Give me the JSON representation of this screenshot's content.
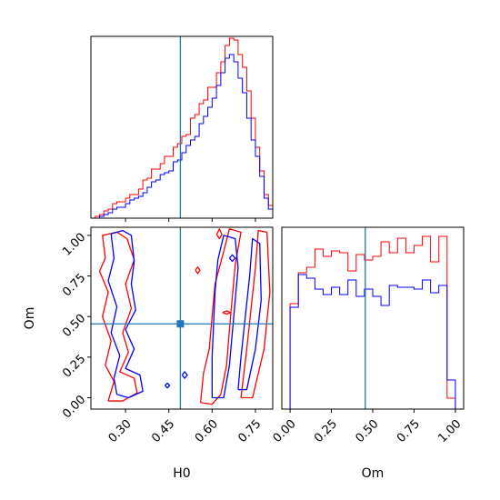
{
  "colors": {
    "series_a": "#ff0000",
    "series_b": "#0000ff",
    "truth": "#1f77b4"
  },
  "chart_data": {
    "type": "corner",
    "parameters": [
      "H0",
      "Om"
    ],
    "truths": {
      "H0": 0.49,
      "Om": 0.455
    },
    "panels": [
      {
        "id": "hist-H0",
        "type": "histogram",
        "parameter": "H0",
        "x": [
          0.18,
          0.195,
          0.21,
          0.225,
          0.24,
          0.255,
          0.27,
          0.285,
          0.3,
          0.315,
          0.33,
          0.345,
          0.36,
          0.375,
          0.39,
          0.405,
          0.42,
          0.435,
          0.45,
          0.465,
          0.48,
          0.495,
          0.51,
          0.525,
          0.54,
          0.555,
          0.57,
          0.585,
          0.6,
          0.615,
          0.63,
          0.645,
          0.66,
          0.675,
          0.69,
          0.705,
          0.72,
          0.735,
          0.75,
          0.765,
          0.78,
          0.795
        ],
        "xlim": [
          0.18,
          0.81
        ],
        "ylim": [
          0,
          1.0
        ],
        "grid": false,
        "series": [
          {
            "color": "red",
            "values": [
              0.0,
              0.01,
              0.02,
              0.04,
              0.05,
              0.08,
              0.09,
              0.09,
              0.11,
              0.13,
              0.13,
              0.16,
              0.21,
              0.22,
              0.27,
              0.27,
              0.3,
              0.34,
              0.34,
              0.39,
              0.41,
              0.45,
              0.46,
              0.55,
              0.57,
              0.63,
              0.65,
              0.72,
              0.72,
              0.8,
              0.86,
              0.95,
              0.99,
              0.98,
              0.9,
              0.83,
              0.7,
              0.55,
              0.39,
              0.26,
              0.13,
              0.07
            ]
          },
          {
            "color": "blue",
            "values": [
              0.0,
              0.0,
              0.01,
              0.02,
              0.03,
              0.05,
              0.06,
              0.06,
              0.08,
              0.1,
              0.11,
              0.12,
              0.14,
              0.17,
              0.2,
              0.21,
              0.24,
              0.25,
              0.26,
              0.31,
              0.32,
              0.36,
              0.4,
              0.43,
              0.45,
              0.52,
              0.56,
              0.61,
              0.66,
              0.73,
              0.8,
              0.88,
              0.9,
              0.86,
              0.77,
              0.69,
              0.55,
              0.43,
              0.34,
              0.23,
              0.11,
              0.05
            ]
          }
        ]
      },
      {
        "id": "contour-H0-Om",
        "type": "contour",
        "xparam": "H0",
        "yparam": "Om",
        "xlim": [
          0.18,
          0.81
        ],
        "ylim": [
          -0.07,
          1.05
        ],
        "xticks": [
          0.3,
          0.45,
          0.6,
          0.75
        ],
        "xtick_labels": [
          "0.30",
          "0.45",
          "0.60",
          "0.75"
        ],
        "yticks": [
          0.0,
          0.25,
          0.5,
          0.75,
          1.0
        ],
        "ytick_labels": [
          "0.00",
          "0.25",
          "0.50",
          "0.75",
          "1.00"
        ],
        "xlabel": "H0",
        "ylabel": "Om",
        "grid": false,
        "contours": [
          {
            "color": "red",
            "points": [
              [
                0.24,
                -0.02
              ],
              [
                0.29,
                -0.02
              ],
              [
                0.34,
                0.03
              ],
              [
                0.33,
                0.12
              ],
              [
                0.28,
                0.16
              ],
              [
                0.31,
                0.28
              ],
              [
                0.29,
                0.4
              ],
              [
                0.32,
                0.55
              ],
              [
                0.3,
                0.7
              ],
              [
                0.33,
                0.85
              ],
              [
                0.305,
                0.98
              ],
              [
                0.27,
                1.02
              ],
              [
                0.22,
                1.0
              ],
              [
                0.23,
                0.86
              ],
              [
                0.21,
                0.78
              ],
              [
                0.24,
                0.65
              ],
              [
                0.22,
                0.5
              ],
              [
                0.25,
                0.35
              ],
              [
                0.23,
                0.2
              ],
              [
                0.26,
                0.1
              ],
              [
                0.24,
                -0.02
              ]
            ]
          },
          {
            "color": "red",
            "points": [
              [
                0.56,
                -0.03
              ],
              [
                0.6,
                -0.04
              ],
              [
                0.63,
                0.02
              ],
              [
                0.65,
                0.2
              ],
              [
                0.66,
                0.42
              ],
              [
                0.67,
                0.62
              ],
              [
                0.68,
                0.82
              ],
              [
                0.7,
                1.02
              ],
              [
                0.66,
                1.04
              ],
              [
                0.64,
                0.9
              ],
              [
                0.61,
                0.7
              ],
              [
                0.6,
                0.5
              ],
              [
                0.59,
                0.3
              ],
              [
                0.57,
                0.15
              ],
              [
                0.56,
                -0.03
              ]
            ]
          },
          {
            "color": "red",
            "points": [
              [
                0.7,
                0.0
              ],
              [
                0.74,
                0.0
              ],
              [
                0.78,
                0.3
              ],
              [
                0.8,
                0.65
              ],
              [
                0.79,
                1.02
              ],
              [
                0.76,
                1.03
              ],
              [
                0.75,
                0.8
              ],
              [
                0.735,
                0.55
              ],
              [
                0.72,
                0.3
              ],
              [
                0.7,
                0.0
              ]
            ]
          },
          {
            "color": "red",
            "points": [
              [
                0.616,
                1.005
              ],
              [
                0.625,
                1.04
              ],
              [
                0.634,
                1.005
              ],
              [
                0.625,
                0.98
              ],
              [
                0.616,
                1.005
              ]
            ]
          },
          {
            "color": "red",
            "points": [
              [
                0.636,
                0.525
              ],
              [
                0.65,
                0.535
              ],
              [
                0.664,
                0.525
              ],
              [
                0.65,
                0.515
              ],
              [
                0.636,
                0.525
              ]
            ]
          },
          {
            "color": "red",
            "points": [
              [
                0.542,
                0.785
              ],
              [
                0.55,
                0.805
              ],
              [
                0.558,
                0.785
              ],
              [
                0.55,
                0.765
              ],
              [
                0.542,
                0.785
              ]
            ]
          },
          {
            "color": "blue",
            "points": [
              [
                0.27,
                0.02
              ],
              [
                0.31,
                0.0
              ],
              [
                0.36,
                0.04
              ],
              [
                0.35,
                0.14
              ],
              [
                0.3,
                0.18
              ],
              [
                0.33,
                0.3
              ],
              [
                0.3,
                0.42
              ],
              [
                0.335,
                0.54
              ],
              [
                0.32,
                0.7
              ],
              [
                0.33,
                0.84
              ],
              [
                0.32,
                1.0
              ],
              [
                0.29,
                1.03
              ],
              [
                0.25,
                1.01
              ],
              [
                0.26,
                0.86
              ],
              [
                0.24,
                0.72
              ],
              [
                0.27,
                0.56
              ],
              [
                0.25,
                0.4
              ],
              [
                0.28,
                0.26
              ],
              [
                0.26,
                0.12
              ],
              [
                0.27,
                0.02
              ]
            ]
          },
          {
            "color": "blue",
            "points": [
              [
                0.6,
                0.0
              ],
              [
                0.64,
                0.0
              ],
              [
                0.66,
                0.2
              ],
              [
                0.67,
                0.4
              ],
              [
                0.68,
                0.6
              ],
              [
                0.69,
                0.8
              ],
              [
                0.68,
                0.98
              ],
              [
                0.64,
                1.0
              ],
              [
                0.62,
                0.85
              ],
              [
                0.61,
                0.65
              ],
              [
                0.605,
                0.45
              ],
              [
                0.6,
                0.25
              ],
              [
                0.6,
                0.0
              ]
            ]
          },
          {
            "color": "blue",
            "points": [
              [
                0.69,
                0.05
              ],
              [
                0.72,
                0.05
              ],
              [
                0.75,
                0.3
              ],
              [
                0.77,
                0.6
              ],
              [
                0.765,
                0.95
              ],
              [
                0.74,
                0.98
              ],
              [
                0.73,
                0.75
              ],
              [
                0.715,
                0.5
              ],
              [
                0.7,
                0.25
              ],
              [
                0.69,
                0.05
              ]
            ]
          },
          {
            "color": "blue",
            "points": [
              [
                0.496,
                0.14
              ],
              [
                0.505,
                0.16
              ],
              [
                0.514,
                0.14
              ],
              [
                0.505,
                0.12
              ],
              [
                0.496,
                0.14
              ]
            ]
          },
          {
            "color": "blue",
            "points": [
              [
                0.437,
                0.075
              ],
              [
                0.445,
                0.09
              ],
              [
                0.453,
                0.075
              ],
              [
                0.445,
                0.06
              ],
              [
                0.437,
                0.075
              ]
            ]
          },
          {
            "color": "blue",
            "points": [
              [
                0.66,
                0.86
              ],
              [
                0.67,
                0.88
              ],
              [
                0.68,
                0.86
              ],
              [
                0.67,
                0.84
              ],
              [
                0.66,
                0.86
              ]
            ]
          }
        ]
      },
      {
        "id": "hist-Om",
        "type": "histogram",
        "parameter": "Om",
        "x": [
          0.0,
          0.05,
          0.1,
          0.15,
          0.2,
          0.25,
          0.3,
          0.35,
          0.4,
          0.45,
          0.5,
          0.55,
          0.6,
          0.65,
          0.7,
          0.75,
          0.8,
          0.85,
          0.9,
          0.95
        ],
        "xlim": [
          -0.05,
          1.05
        ],
        "ylim": [
          0,
          1.0
        ],
        "xticks": [
          0.0,
          0.25,
          0.5,
          0.75,
          1.0
        ],
        "xtick_labels": [
          "0.00",
          "0.25",
          "0.50",
          "0.75",
          "1.00"
        ],
        "xlabel": "Om",
        "grid": false,
        "series": [
          {
            "color": "red",
            "values": [
              0.58,
              0.75,
              0.78,
              0.88,
              0.84,
              0.87,
              0.86,
              0.76,
              0.85,
              0.82,
              0.84,
              0.92,
              0.86,
              0.94,
              0.86,
              0.9,
              0.95,
              0.81,
              0.95,
              0.06
            ]
          },
          {
            "color": "blue",
            "values": [
              0.56,
              0.74,
              0.72,
              0.66,
              0.63,
              0.67,
              0.63,
              0.71,
              0.62,
              0.66,
              0.62,
              0.57,
              0.68,
              0.67,
              0.67,
              0.66,
              0.71,
              0.64,
              0.68,
              0.16
            ]
          }
        ]
      }
    ]
  }
}
